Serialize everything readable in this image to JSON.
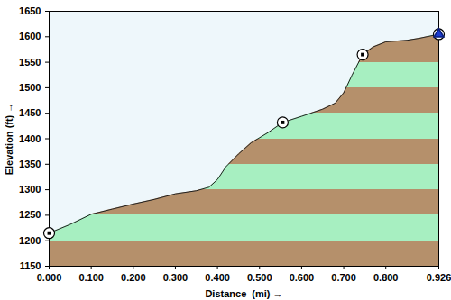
{
  "chart_data": {
    "type": "area",
    "xlabel": "Distance  (mi)",
    "ylabel": "Elevation (ft)",
    "x": [
      0.0,
      0.05,
      0.1,
      0.15,
      0.2,
      0.25,
      0.3,
      0.35,
      0.38,
      0.4,
      0.42,
      0.45,
      0.48,
      0.52,
      0.555,
      0.6,
      0.65,
      0.68,
      0.7,
      0.72,
      0.745,
      0.77,
      0.8,
      0.85,
      0.88,
      0.926
    ],
    "values": [
      1215,
      1232,
      1252,
      1262,
      1272,
      1281,
      1292,
      1298,
      1305,
      1320,
      1345,
      1370,
      1392,
      1412,
      1432,
      1444,
      1458,
      1470,
      1490,
      1525,
      1565,
      1580,
      1590,
      1593,
      1597,
      1605
    ],
    "colors": [
      "#b5906b",
      "#a7efc1"
    ],
    "xlim": [
      0,
      0.926
    ],
    "ylim": [
      1150,
      1650
    ],
    "xticks": [
      {
        "value": 0,
        "label": "0.000"
      },
      {
        "value": 0.1,
        "label": "0.100"
      },
      {
        "value": 0.2,
        "label": "0.200"
      },
      {
        "value": 0.3,
        "label": "0.300"
      },
      {
        "value": 0.4,
        "label": "0.400"
      },
      {
        "value": 0.5,
        "label": "0.500"
      },
      {
        "value": 0.6,
        "label": "0.600"
      },
      {
        "value": 0.7,
        "label": "0.700"
      },
      {
        "value": 0.8,
        "label": "0.800"
      },
      {
        "value": 0.926,
        "label": "0.926"
      }
    ],
    "yticks": [
      1150,
      1200,
      1250,
      1300,
      1350,
      1400,
      1450,
      1500,
      1550,
      1600,
      1650
    ],
    "waypoints": {
      "x": [
        0.0,
        0.555,
        0.745
      ],
      "values": [
        1215,
        1432,
        1565
      ],
      "marker": "circle"
    },
    "end": {
      "x": 0.926,
      "value": 1605,
      "marker": "flag"
    }
  }
}
